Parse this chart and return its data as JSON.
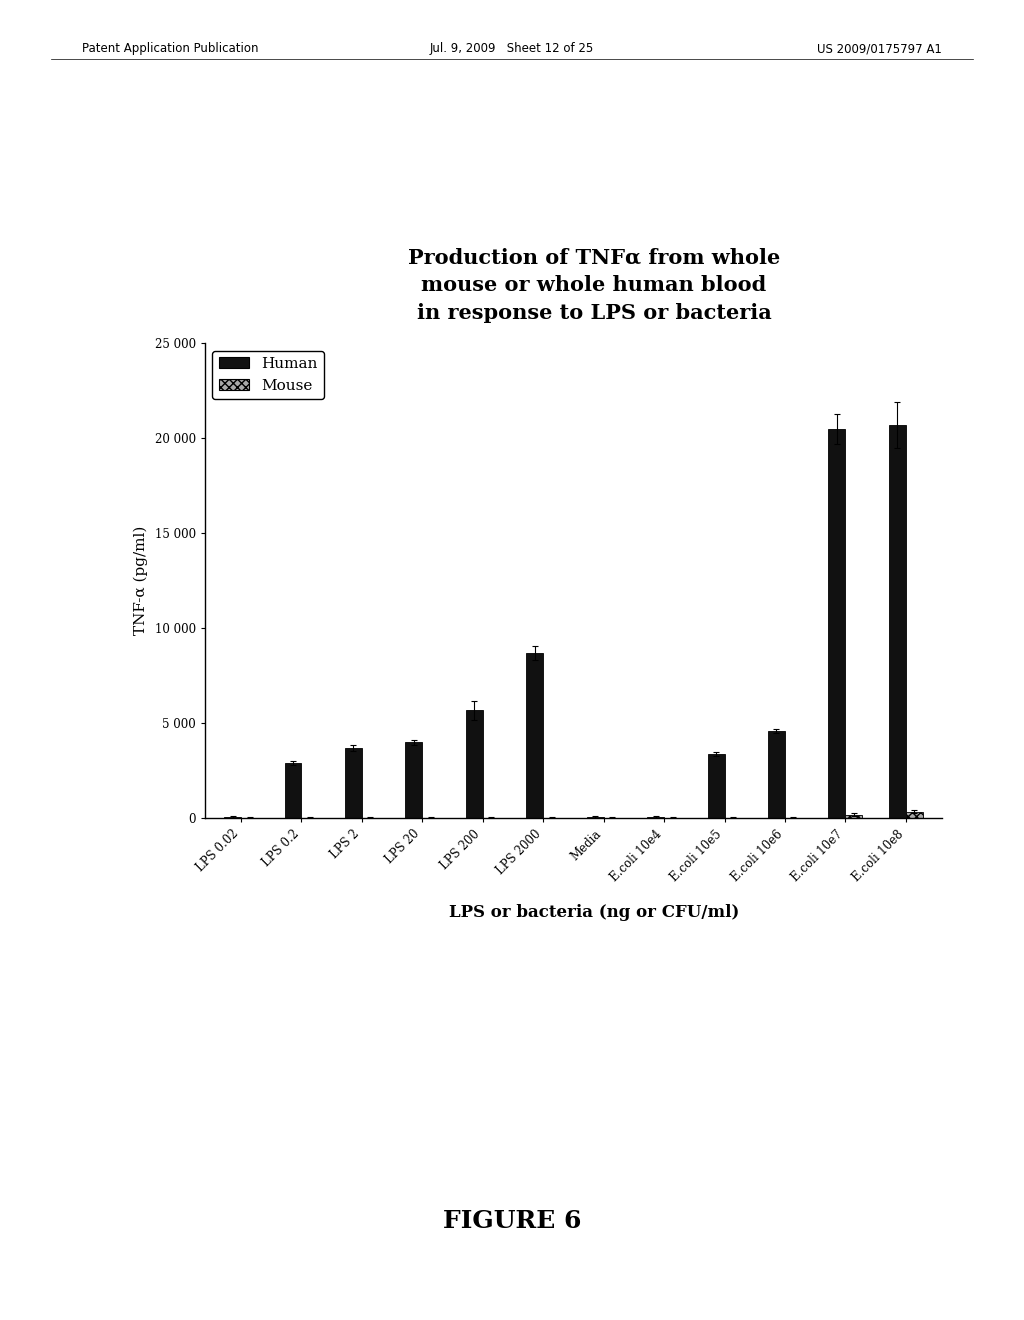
{
  "title": "Production of TNFα from whole\nmouse or whole human blood\nin response to LPS or bacteria",
  "xlabel": "LPS or bacteria (ng or CFU/ml)",
  "ylabel": "TNF-α (pg/ml)",
  "categories": [
    "LPS 0.02",
    "LPS 0.2",
    "LPS 2",
    "LPS 20",
    "LPS 200",
    "LPS 2000",
    "Media",
    "E.coli 10e4",
    "E.coli 10e5",
    "E.coli 10e6",
    "E.coli 10e7",
    "E.coli 10e8"
  ],
  "human_values": [
    80,
    2900,
    3700,
    4000,
    5700,
    8700,
    80,
    80,
    3400,
    4600,
    20500,
    20700
  ],
  "mouse_values": [
    40,
    40,
    40,
    40,
    40,
    40,
    40,
    40,
    40,
    40,
    200,
    350
  ],
  "human_errors": [
    40,
    100,
    150,
    150,
    500,
    350,
    40,
    40,
    100,
    100,
    800,
    1200
  ],
  "mouse_errors": [
    20,
    20,
    20,
    20,
    20,
    20,
    20,
    20,
    20,
    20,
    60,
    80
  ],
  "human_color": "#111111",
  "mouse_hatch": "xxxx",
  "mouse_color": "#aaaaaa",
  "ylim": [
    0,
    25000
  ],
  "yticks": [
    0,
    5000,
    10000,
    15000,
    20000,
    25000
  ],
  "bar_width": 0.28,
  "legend_labels": [
    "Human",
    "Mouse"
  ],
  "title_fontsize": 15,
  "axis_fontsize": 11,
  "tick_fontsize": 8.5,
  "figure_caption": "FIGURE 6",
  "background_color": "#ffffff",
  "header_left": "Patent Application Publication",
  "header_mid": "Jul. 9, 2009   Sheet 12 of 25",
  "header_right": "US 2009/0175797 A1"
}
